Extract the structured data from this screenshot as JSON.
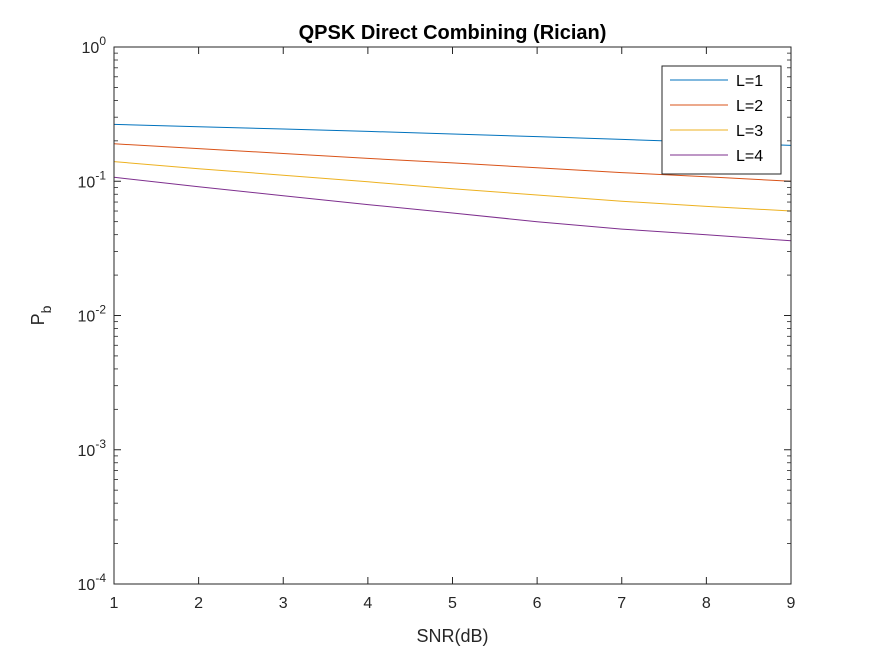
{
  "chart_data": {
    "type": "line",
    "title": "QPSK Direct Combining (Rician)",
    "xlabel": "SNR(dB)",
    "ylabel": {
      "base": "P",
      "sub": "b"
    },
    "xlim": [
      1,
      9
    ],
    "ylim": [
      0.0001,
      1
    ],
    "yscale": "log",
    "x_ticks": [
      "1",
      "2",
      "3",
      "4",
      "5",
      "6",
      "7",
      "8",
      "9"
    ],
    "y_ticks": [
      {
        "base": "10",
        "exp": "0",
        "value": 1
      },
      {
        "base": "10",
        "exp": "-1",
        "value": 0.1
      },
      {
        "base": "10",
        "exp": "-2",
        "value": 0.01
      },
      {
        "base": "10",
        "exp": "-3",
        "value": 0.001
      },
      {
        "base": "10",
        "exp": "-4",
        "value": 0.0001
      }
    ],
    "grid": false,
    "legend_position": "top-right",
    "x": [
      1,
      2,
      3,
      4,
      5,
      6,
      7,
      8,
      9
    ],
    "series": [
      {
        "name": "L=1",
        "color": "#0072BD",
        "values": [
          0.265,
          0.255,
          0.245,
          0.235,
          0.225,
          0.215,
          0.205,
          0.195,
          0.185
        ]
      },
      {
        "name": "L=2",
        "color": "#D95319",
        "values": [
          0.19,
          0.175,
          0.161,
          0.148,
          0.137,
          0.126,
          0.116,
          0.108,
          0.1
        ]
      },
      {
        "name": "L=3",
        "color": "#EDB120",
        "values": [
          0.14,
          0.124,
          0.111,
          0.099,
          0.088,
          0.079,
          0.071,
          0.065,
          0.06
        ]
      },
      {
        "name": "L=4",
        "color": "#7E2F8E",
        "values": [
          0.107,
          0.091,
          0.078,
          0.067,
          0.058,
          0.05,
          0.044,
          0.04,
          0.036
        ]
      }
    ]
  }
}
